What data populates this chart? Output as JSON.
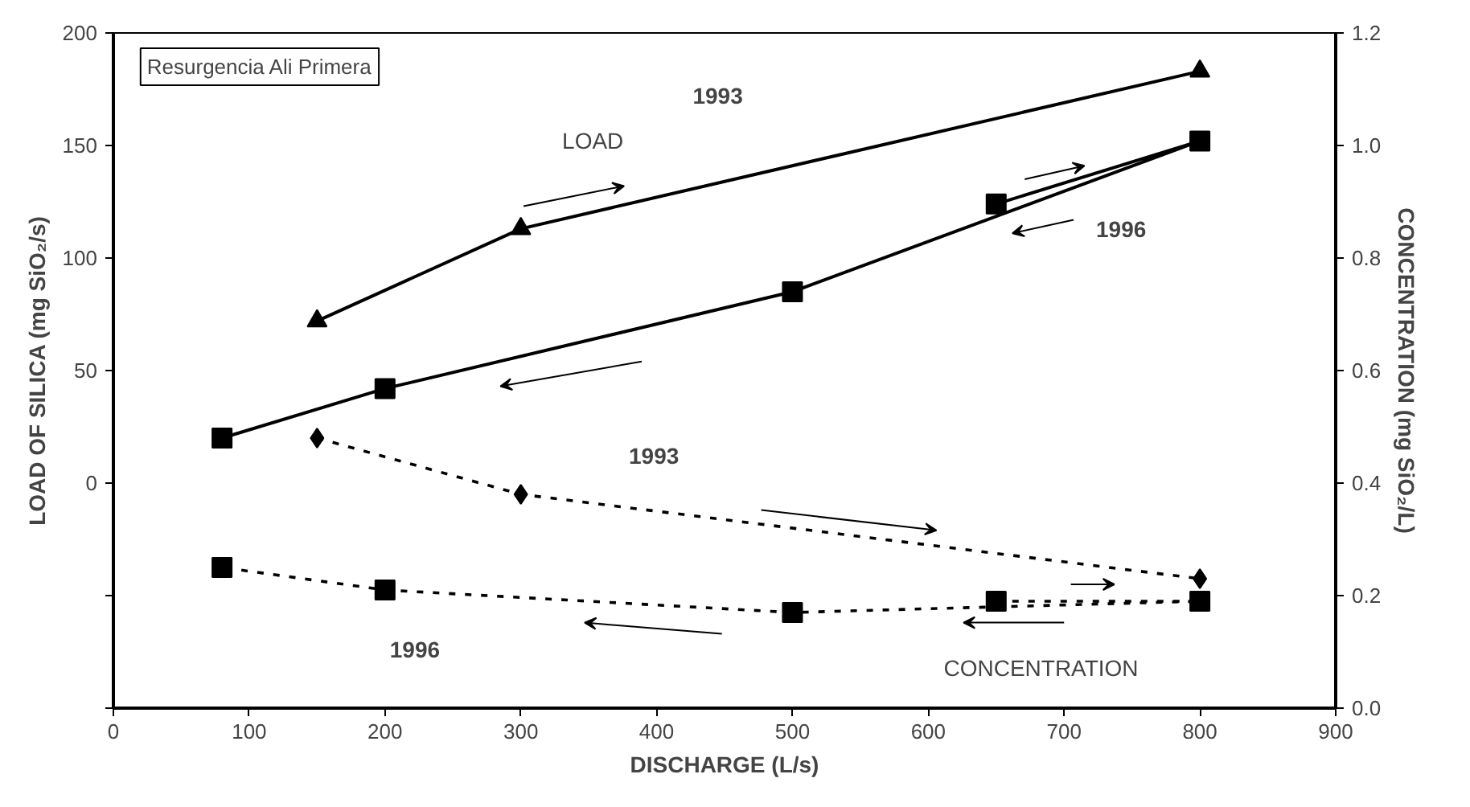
{
  "chart_data": {
    "type": "line",
    "xlabel": "DISCHARGE (L/s)",
    "ylabel": "LOAD OF SILICA (mg SiO₂/s)",
    "y2label": "CONCENTRATION (mg SiO₂/L)",
    "xlim": [
      0,
      900
    ],
    "xticks": [
      0,
      100,
      200,
      300,
      400,
      500,
      600,
      700,
      800,
      900
    ],
    "ylim": [
      -100,
      200
    ],
    "yticks": [
      {
        "value": -100,
        "label": null
      },
      {
        "value": -50,
        "label": null
      },
      0,
      50,
      100,
      150,
      200
    ],
    "y2lim": [
      0,
      1.2
    ],
    "y2ticks": [
      {
        "value": 0,
        "label": "0.0"
      },
      0.2,
      0.4,
      0.6,
      0.8,
      {
        "value": 1,
        "label": "1.0"
      },
      1.2
    ],
    "grid": false,
    "series": [
      {
        "color": "#000000",
        "marker": "triangle",
        "line_style": "solid",
        "x": [
          150,
          300,
          800
        ],
        "values": [
          72,
          113,
          183
        ]
      },
      {
        "color": "#000000",
        "marker": "square",
        "line_style": "solid",
        "x": [
          650,
          800,
          500,
          200,
          80
        ],
        "values": [
          124,
          152,
          85,
          42,
          20
        ]
      },
      {
        "color": "#000000",
        "marker": "diamond",
        "line_style": "dashed",
        "axis": "y2",
        "x": [
          150,
          300,
          800
        ],
        "values": [
          0.48,
          0.38,
          0.23
        ]
      },
      {
        "color": "#000000",
        "marker": "square",
        "line_style": "dashed",
        "axis": "y2",
        "x": [
          650,
          800,
          500,
          200,
          80
        ],
        "values": [
          0.19,
          0.19,
          0.17,
          0.21,
          0.25
        ]
      }
    ],
    "annotations": [
      "Resurgencia Ali Primera",
      "LOAD",
      "1993",
      "1996",
      "1993",
      "1996",
      "CONCENTRATION"
    ]
  }
}
